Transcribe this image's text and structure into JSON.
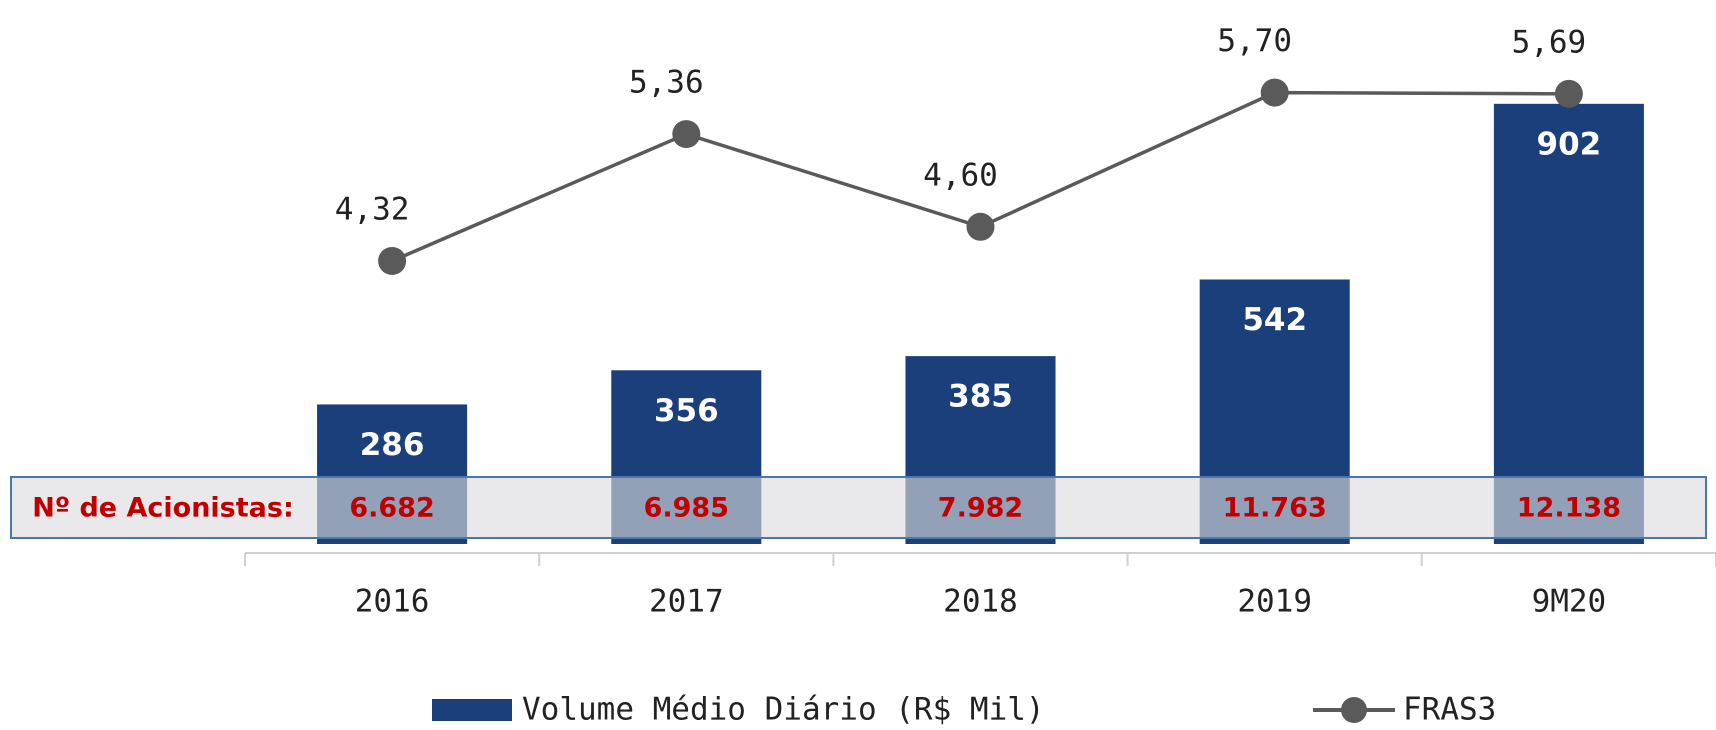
{
  "chart_data": {
    "type": "bar-line",
    "categories": [
      "2016",
      "2017",
      "2018",
      "2019",
      "9M20"
    ],
    "series": [
      {
        "name": "Volume Médio Diário (R$ Mil)",
        "type": "bar",
        "color": "#1b3f7a",
        "values": [
          286,
          356,
          385,
          542,
          902
        ]
      },
      {
        "name": "FRAS3",
        "type": "line",
        "axis": "y2",
        "color": "#5a5a5a",
        "values": [
          4.32,
          5.36,
          4.6,
          5.7,
          5.69
        ],
        "value_labels": [
          "4,32",
          "5,36",
          "4,60",
          "5,70",
          "5,69"
        ]
      }
    ],
    "ylim": [
      0,
      1000
    ],
    "y2lim": [
      2,
      6
    ],
    "grid": false,
    "legend": "bottom"
  },
  "shareholders": {
    "label": "Nº de Acionistas:",
    "values": [
      "6.682",
      "6.985",
      "7.982",
      "11.763",
      "12.138"
    ]
  }
}
